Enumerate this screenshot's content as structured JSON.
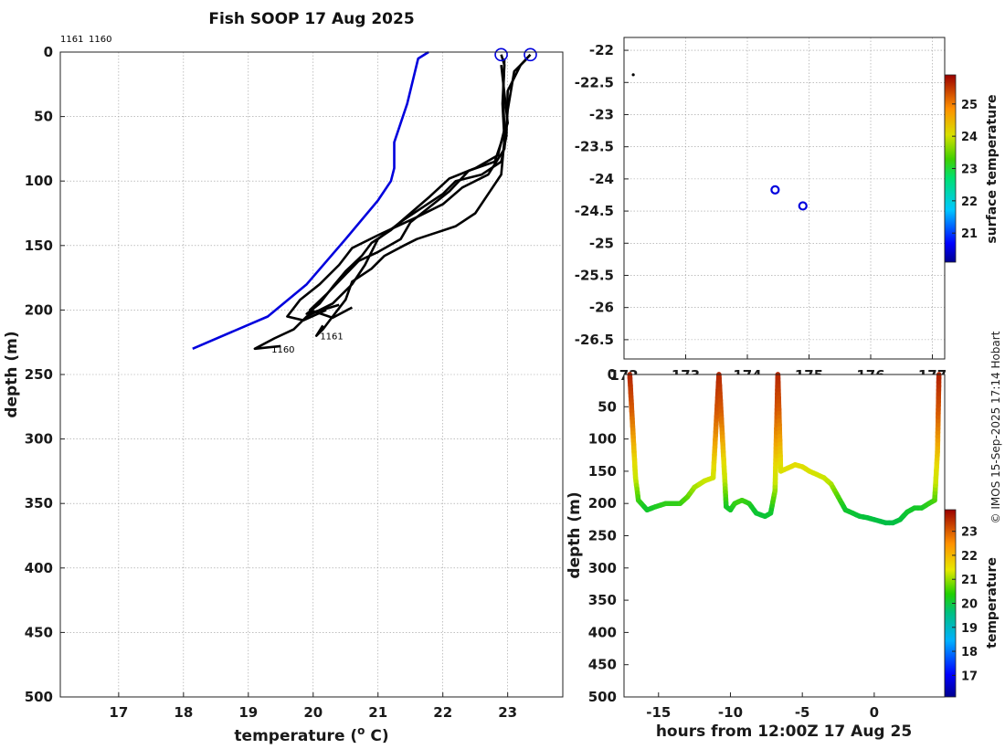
{
  "chart_data": [
    {
      "type": "line",
      "name": "temperature-depth-profiles",
      "title": "Fish SOOP 17 Aug 2025",
      "xlabel": "temperature (° C)",
      "ylabel": "depth (m)",
      "xlim": [
        16.1,
        23.85
      ],
      "ylim": [
        0,
        500
      ],
      "y_reversed": true,
      "xticks": [
        17,
        18,
        19,
        20,
        21,
        22,
        23
      ],
      "yticks": [
        0,
        50,
        100,
        150,
        200,
        250,
        300,
        350,
        400,
        450,
        500
      ],
      "grid": true,
      "header_labels": [
        "1161",
        "1160"
      ],
      "markers": [
        {
          "temperature": 22.9,
          "depth": 2
        },
        {
          "temperature": 23.35,
          "depth": 2
        }
      ],
      "series": [
        {
          "name": "climatology",
          "color": "#0000dd",
          "points": [
            [
              21.78,
              0
            ],
            [
              21.62,
              5
            ],
            [
              21.45,
              40
            ],
            [
              21.25,
              70
            ],
            [
              21.25,
              90
            ],
            [
              21.2,
              100
            ],
            [
              20.95,
              125
            ],
            [
              20.4,
              160
            ],
            [
              19.8,
              195
            ],
            [
              19.3,
              220
            ],
            [
              18.95,
              240
            ],
            [
              18.14,
              230
            ]
          ],
          "clean_points": [
            [
              21.78,
              0
            ],
            [
              21.62,
              5
            ],
            [
              21.45,
              40
            ],
            [
              21.25,
              70
            ],
            [
              21.25,
              90
            ],
            [
              21.2,
              100
            ],
            [
              21.0,
              115
            ],
            [
              20.5,
              145
            ],
            [
              19.9,
              180
            ],
            [
              19.3,
              205
            ],
            [
              18.14,
              230
            ]
          ]
        },
        {
          "name": "1160",
          "label": "1160",
          "label_at": [
            19.3,
            230
          ],
          "color": "#000000",
          "points": [
            [
              23.35,
              2
            ],
            [
              23.2,
              10
            ],
            [
              23.0,
              30
            ],
            [
              22.98,
              65
            ],
            [
              22.9,
              85
            ],
            [
              22.6,
              95
            ],
            [
              22.2,
              100
            ],
            [
              22.0,
              110
            ],
            [
              21.7,
              120
            ],
            [
              21.4,
              130
            ],
            [
              21.0,
              145
            ],
            [
              20.8,
              165
            ],
            [
              20.6,
              180
            ],
            [
              20.3,
              195
            ],
            [
              19.9,
              205
            ],
            [
              19.7,
              215
            ],
            [
              19.4,
              222
            ],
            [
              19.1,
              230
            ],
            [
              19.5,
              228
            ]
          ]
        },
        {
          "name": "1161",
          "label": "1161",
          "label_at": [
            20.05,
            220
          ],
          "color": "#000000",
          "points": [
            [
              22.9,
              2
            ],
            [
              22.95,
              10
            ],
            [
              22.92,
              40
            ],
            [
              22.95,
              68
            ],
            [
              22.9,
              95
            ],
            [
              22.7,
              110
            ],
            [
              22.5,
              125
            ],
            [
              22.2,
              135
            ],
            [
              21.9,
              140
            ],
            [
              21.6,
              145
            ],
            [
              21.4,
              150
            ],
            [
              21.1,
              158
            ],
            [
              20.9,
              168
            ],
            [
              20.6,
              178
            ],
            [
              20.5,
              192
            ],
            [
              20.3,
              205
            ],
            [
              20.15,
              215
            ],
            [
              20.05,
              220
            ],
            [
              20.15,
              212
            ]
          ]
        },
        {
          "name": "cast-3",
          "color": "#000000",
          "points": [
            [
              23.3,
              5
            ],
            [
              23.1,
              15
            ],
            [
              23.0,
              45
            ],
            [
              22.95,
              75
            ],
            [
              22.7,
              95
            ],
            [
              22.3,
              105
            ],
            [
              22.0,
              118
            ],
            [
              21.6,
              128
            ],
            [
              21.3,
              135
            ],
            [
              21.0,
              142
            ],
            [
              20.6,
              152
            ],
            [
              20.4,
              165
            ],
            [
              20.1,
              180
            ],
            [
              19.8,
              192
            ],
            [
              19.6,
              205
            ],
            [
              19.85,
              208
            ],
            [
              20.2,
              200
            ]
          ]
        },
        {
          "name": "cast-4",
          "color": "#000000",
          "points": [
            [
              22.95,
              5
            ],
            [
              22.93,
              35
            ],
            [
              22.95,
              60
            ],
            [
              22.85,
              80
            ],
            [
              22.5,
              90
            ],
            [
              22.1,
              98
            ],
            [
              21.8,
              112
            ],
            [
              21.5,
              125
            ],
            [
              21.2,
              138
            ],
            [
              20.9,
              148
            ],
            [
              20.75,
              158
            ],
            [
              20.5,
              170
            ],
            [
              20.3,
              182
            ],
            [
              20.1,
              195
            ],
            [
              19.9,
              203
            ],
            [
              20.2,
              199
            ],
            [
              20.4,
              196
            ]
          ]
        },
        {
          "name": "cast-5",
          "color": "#000000",
          "points": [
            [
              22.9,
              10
            ],
            [
              23.0,
              55
            ],
            [
              22.8,
              85
            ],
            [
              22.4,
              92
            ],
            [
              22.1,
              108
            ],
            [
              21.8,
              120
            ],
            [
              21.5,
              132
            ],
            [
              21.35,
              145
            ],
            [
              21.0,
              155
            ],
            [
              20.7,
              162
            ],
            [
              20.45,
              175
            ],
            [
              20.2,
              188
            ],
            [
              19.95,
              200
            ],
            [
              20.3,
              206
            ],
            [
              20.6,
              198
            ]
          ]
        }
      ]
    },
    {
      "type": "scatter",
      "name": "track-map",
      "xlim": [
        172.0,
        177.2
      ],
      "ylim": [
        -26.8,
        -21.8
      ],
      "xticks": [
        172,
        173,
        174,
        175,
        176,
        177
      ],
      "xtick_labels": [
        "172",
        "173",
        "174",
        "175",
        "176",
        "177"
      ],
      "yticks": [
        -22,
        -22.5,
        -23,
        -23.5,
        -24,
        -24.5,
        -25,
        -25.5,
        -26,
        -26.5
      ],
      "grid": true,
      "points": [
        {
          "lon": 174.45,
          "lat": -24.17,
          "marker": "circle",
          "color": "#0000dd"
        },
        {
          "lon": 174.9,
          "lat": -24.42,
          "marker": "circle",
          "color": "#0000dd"
        },
        {
          "lon": 172.15,
          "lat": -22.38,
          "marker": "dot",
          "color": "#000000"
        }
      ],
      "colorbar": {
        "label": "surface temperature",
        "range": [
          20.1,
          25.9
        ],
        "ticks": [
          21,
          22,
          23,
          24,
          25
        ]
      }
    },
    {
      "type": "scatter",
      "name": "depth-time-section",
      "xlabel": "hours from 12:00Z 17 Aug 25",
      "ylabel": "depth (m)",
      "xlim": [
        -17.4,
        4.9
      ],
      "ylim": [
        0,
        500
      ],
      "y_reversed": true,
      "xticks": [
        -15,
        -10,
        -5,
        0
      ],
      "yticks": [
        0,
        50,
        100,
        150,
        200,
        250,
        300,
        350,
        400,
        450,
        500
      ],
      "trace": [
        [
          -17.0,
          0
        ],
        [
          -16.8,
          80
        ],
        [
          -16.6,
          160
        ],
        [
          -16.4,
          195
        ],
        [
          -16.2,
          200
        ],
        [
          -15.8,
          210
        ],
        [
          -15.2,
          205
        ],
        [
          -14.5,
          200
        ],
        [
          -13.5,
          200
        ],
        [
          -13.0,
          190
        ],
        [
          -12.5,
          175
        ],
        [
          -11.8,
          165
        ],
        [
          -11.2,
          160
        ],
        [
          -10.8,
          0
        ],
        [
          -10.6,
          80
        ],
        [
          -10.4,
          160
        ],
        [
          -10.3,
          205
        ],
        [
          -10.0,
          210
        ],
        [
          -9.7,
          200
        ],
        [
          -9.2,
          195
        ],
        [
          -8.7,
          200
        ],
        [
          -8.2,
          215
        ],
        [
          -7.6,
          220
        ],
        [
          -7.2,
          215
        ],
        [
          -6.9,
          180
        ],
        [
          -6.7,
          0
        ],
        [
          -6.5,
          150
        ],
        [
          -6.0,
          145
        ],
        [
          -5.5,
          140
        ],
        [
          -5.0,
          143
        ],
        [
          -4.5,
          150
        ],
        [
          -4.0,
          155
        ],
        [
          -3.5,
          160
        ],
        [
          -3.0,
          170
        ],
        [
          -2.5,
          190
        ],
        [
          -2.0,
          210
        ],
        [
          -1.5,
          215
        ],
        [
          -1.0,
          220
        ],
        [
          -0.5,
          222
        ],
        [
          0,
          225
        ],
        [
          0.8,
          230
        ],
        [
          1.3,
          230
        ],
        [
          1.8,
          225
        ],
        [
          2.3,
          213
        ],
        [
          2.8,
          207
        ],
        [
          3.3,
          207
        ],
        [
          3.8,
          200
        ],
        [
          4.2,
          195
        ],
        [
          4.4,
          120
        ],
        [
          4.5,
          0
        ]
      ],
      "colorbar": {
        "label": "temperature",
        "range": [
          16.1,
          23.9
        ],
        "ticks": [
          17,
          18,
          19,
          20,
          21,
          22,
          23
        ]
      }
    }
  ],
  "credit": "© IMOS 15-Sep-2025 17:14 Hobart"
}
